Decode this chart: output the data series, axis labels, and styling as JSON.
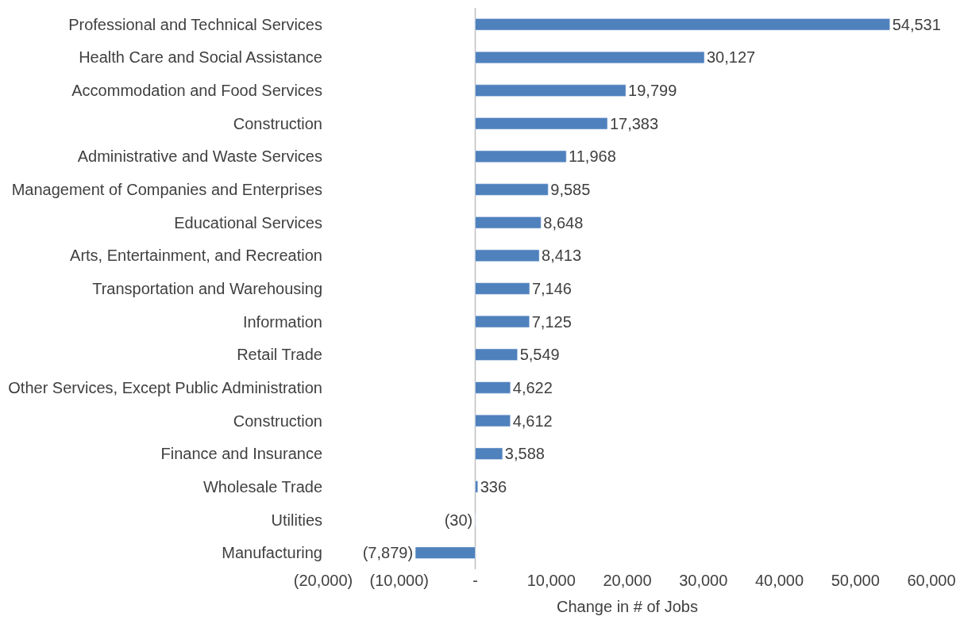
{
  "chart_data": {
    "type": "bar",
    "orientation": "horizontal",
    "xlabel": "Change in # of Jobs",
    "categories": [
      "Professional and Technical Services",
      "Health Care and Social Assistance",
      "Accommodation and Food Services",
      "Construction",
      "Administrative and Waste Services",
      "Management of Companies and Enterprises",
      "Educational Services",
      "Arts, Entertainment, and Recreation",
      "Transportation and Warehousing",
      "Information",
      "Retail Trade",
      "Other Services, Except Public Administration",
      "Construction",
      "Finance and Insurance",
      "Wholesale Trade",
      "Utilities",
      "Manufacturing"
    ],
    "values": [
      54531,
      30127,
      19799,
      17383,
      11968,
      9585,
      8648,
      8413,
      7146,
      7125,
      5549,
      4622,
      4612,
      3588,
      336,
      -30,
      -7879
    ],
    "value_labels": [
      "54,531",
      "30,127",
      "19,799",
      "17,383",
      "11,968",
      "9,585",
      "8,648",
      "8,413",
      "7,146",
      "7,125",
      "5,549",
      "4,622",
      "4,612",
      "3,588",
      "336",
      "(30)",
      "(7,879)"
    ],
    "color": "#4f81bd",
    "xlim": [
      -20000,
      60000
    ],
    "xticks": [
      {
        "value": -20000,
        "label": "(20,000)"
      },
      {
        "value": -10000,
        "label": "(10,000)"
      },
      {
        "value": 0,
        "label": "-"
      },
      {
        "value": 10000,
        "label": "10,000"
      },
      {
        "value": 20000,
        "label": "20,000"
      },
      {
        "value": 30000,
        "label": "30,000"
      },
      {
        "value": 40000,
        "label": "40,000"
      },
      {
        "value": 50000,
        "label": "50,000"
      },
      {
        "value": 60000,
        "label": "60,000"
      }
    ],
    "ref_lines": [
      {
        "axis": "x",
        "value": 0,
        "color": "#bfbfbf"
      }
    ],
    "grid": false,
    "legend": false
  }
}
